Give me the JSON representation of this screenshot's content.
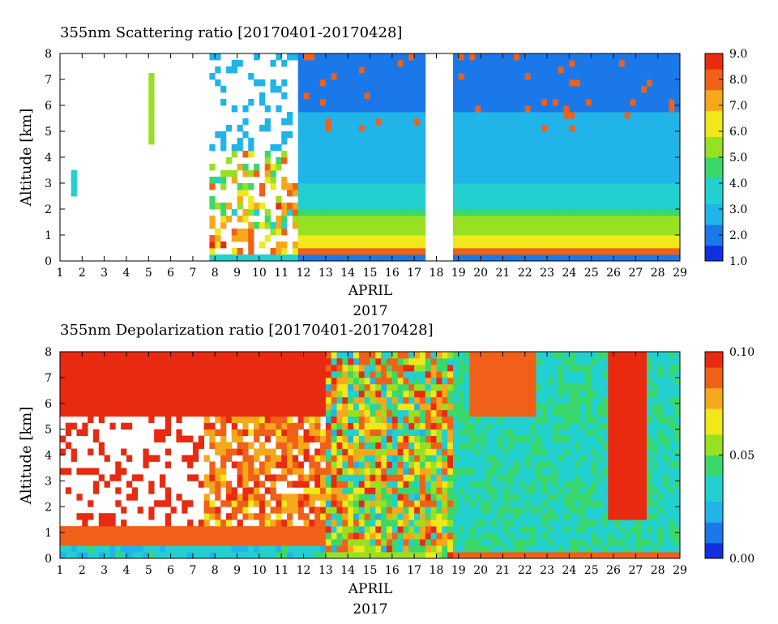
{
  "chart_data": [
    {
      "type": "heatmap",
      "title": "355nm Scattering ratio [20170401-20170428]",
      "ylabel": "Altitude [km]",
      "xlabel": "APRIL",
      "xlabel2": "2017",
      "x_ticks": [
        "1",
        "2",
        "3",
        "4",
        "5",
        "6",
        "7",
        "8",
        "9",
        "10",
        "11",
        "12",
        "13",
        "14",
        "15",
        "16",
        "17",
        "18",
        "19",
        "20",
        "21",
        "22",
        "23",
        "24",
        "25",
        "26",
        "27",
        "28",
        "29"
      ],
      "y_ticks": [
        "0",
        "1",
        "2",
        "3",
        "4",
        "5",
        "6",
        "7",
        "8"
      ],
      "ylim": [
        0,
        8
      ],
      "colorbar": {
        "range": [
          1.0,
          9.0
        ],
        "ticks": [
          "1.0",
          "2.0",
          "3.0",
          "4.0",
          "5.0",
          "6.0",
          "7.0",
          "8.0",
          "9.0"
        ],
        "colors": [
          "#1030e0",
          "#1a78e8",
          "#20b4e8",
          "#22d0d0",
          "#3ad86a",
          "#98e022",
          "#f0e81a",
          "#f5a81a",
          "#f06018",
          "#e82a10"
        ]
      },
      "data_gaps_days": [
        [
          17.6,
          18.8
        ]
      ],
      "description_values": {
        "boundary_layer_km": 0.5,
        "cloud_top_km": 8
      }
    },
    {
      "type": "heatmap",
      "title": "355nm Depolarization ratio [20170401-20170428]",
      "ylabel": "Altitude [km]",
      "xlabel": "APRIL",
      "xlabel2": "2017",
      "x_ticks": [
        "1",
        "2",
        "3",
        "4",
        "5",
        "6",
        "7",
        "8",
        "9",
        "10",
        "11",
        "12",
        "13",
        "14",
        "15",
        "16",
        "17",
        "18",
        "19",
        "20",
        "21",
        "22",
        "23",
        "24",
        "25",
        "26",
        "27",
        "28",
        "29"
      ],
      "y_ticks": [
        "0",
        "1",
        "2",
        "3",
        "4",
        "5",
        "6",
        "7",
        "8"
      ],
      "ylim": [
        0,
        8
      ],
      "colorbar": {
        "range": [
          0.0,
          0.1
        ],
        "ticks": [
          "0.00",
          "0.05",
          "0.10"
        ],
        "colors": [
          "#1030e0",
          "#1a78e8",
          "#20b4e8",
          "#22d0d0",
          "#3ad86a",
          "#98e022",
          "#f0e81a",
          "#f5a81a",
          "#f06018",
          "#e82a10"
        ]
      },
      "data_gaps_days": [
        [
          12.95,
          13.05
        ]
      ]
    }
  ]
}
